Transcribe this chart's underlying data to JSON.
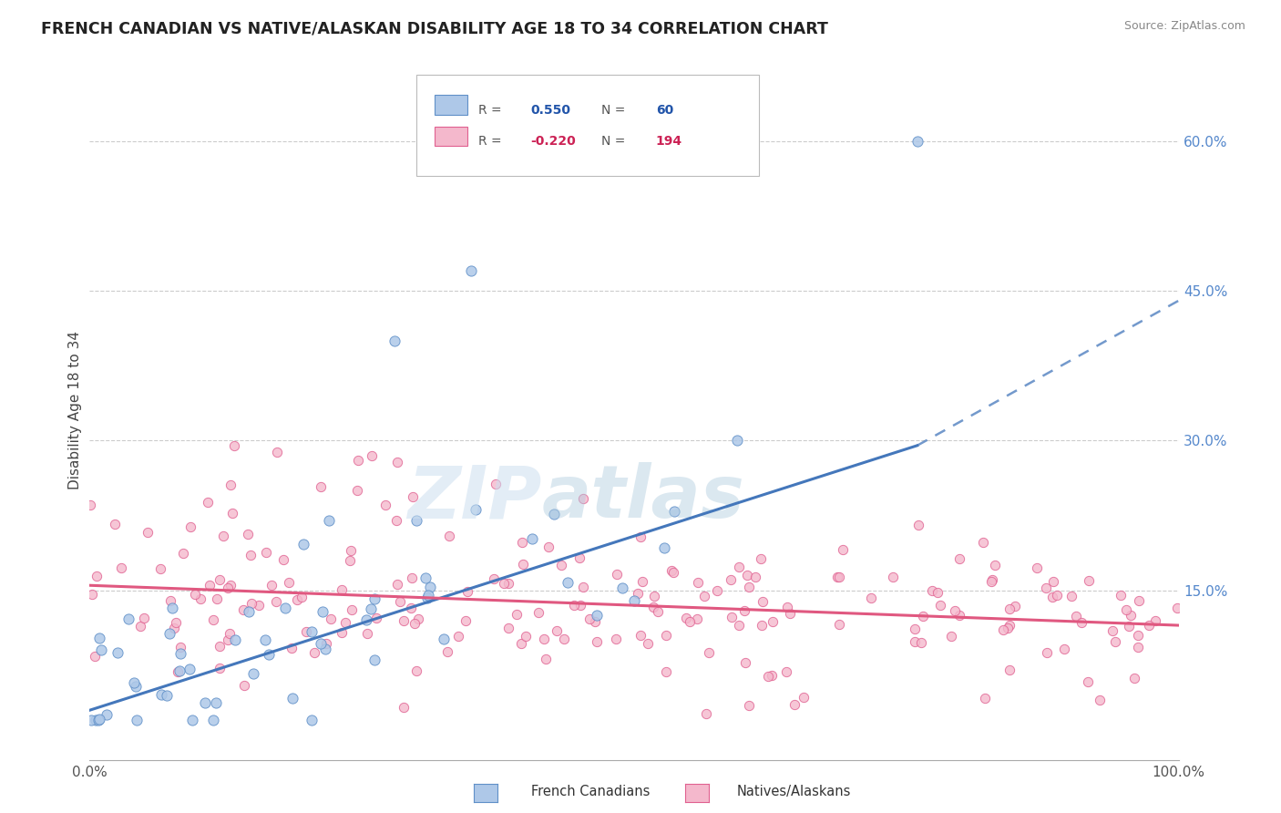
{
  "title": "FRENCH CANADIAN VS NATIVE/ALASKAN DISABILITY AGE 18 TO 34 CORRELATION CHART",
  "source": "Source: ZipAtlas.com",
  "ylabel": "Disability Age 18 to 34",
  "xlim": [
    0.0,
    1.0
  ],
  "ylim": [
    -0.02,
    0.68
  ],
  "xtick_labels": [
    "0.0%",
    "100.0%"
  ],
  "ytick_labels": [
    "15.0%",
    "30.0%",
    "45.0%",
    "60.0%"
  ],
  "ytick_positions": [
    0.15,
    0.3,
    0.45,
    0.6
  ],
  "r_blue": 0.55,
  "n_blue": 60,
  "r_pink": -0.22,
  "n_pink": 194,
  "blue_color": "#aec8e8",
  "pink_color": "#f4b8cc",
  "blue_edge_color": "#6090c8",
  "pink_edge_color": "#e06090",
  "blue_line_color": "#4477bb",
  "pink_line_color": "#e05880",
  "legend_label_blue": "French Canadians",
  "legend_label_pink": "Natives/Alaskans",
  "blue_line_start_x": 0.0,
  "blue_line_start_y": 0.03,
  "blue_line_solid_end_x": 0.76,
  "blue_line_solid_end_y": 0.295,
  "blue_line_dash_end_x": 1.0,
  "blue_line_dash_end_y": 0.44,
  "pink_line_start_x": 0.0,
  "pink_line_start_y": 0.155,
  "pink_line_end_x": 1.0,
  "pink_line_end_y": 0.115
}
